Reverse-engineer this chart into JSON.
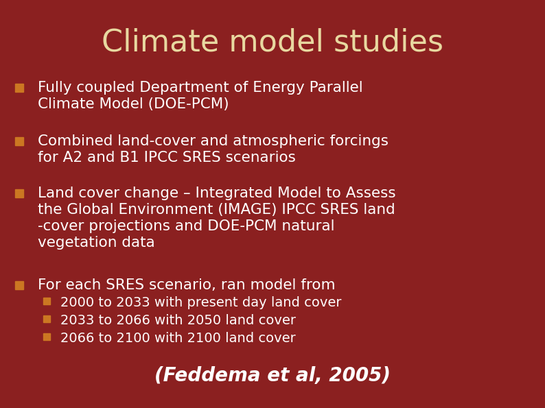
{
  "title": "Climate model studies",
  "title_color": "#E8D8A0",
  "title_fontsize": 32,
  "background_color": "#8B2020",
  "text_color": "#FFFFFF",
  "bullet_color": "#CC7722",
  "sub_bullet_color": "#CC7722",
  "bullet_points": [
    "Fully coupled Department of Energy Parallel\nClimate Model (DOE-PCM)",
    "Combined land-cover and atmospheric forcings\nfor A2 and B1 IPCC SRES scenarios",
    "Land cover change – Integrated Model to Assess\nthe Global Environment (IMAGE) IPCC SRES land\n-cover projections and DOE-PCM natural\nvegetation data",
    "For each SRES scenario, ran model from"
  ],
  "sub_bullet_points": [
    "2000 to 2033 with present day land cover",
    "2033 to 2066 with 2050 land cover",
    "2066 to 2100 with 2100 land cover"
  ],
  "citation": "(Feddema et al, 2005)",
  "citation_fontsize": 20,
  "bullet_fontsize": 15.5,
  "sub_bullet_fontsize": 14
}
